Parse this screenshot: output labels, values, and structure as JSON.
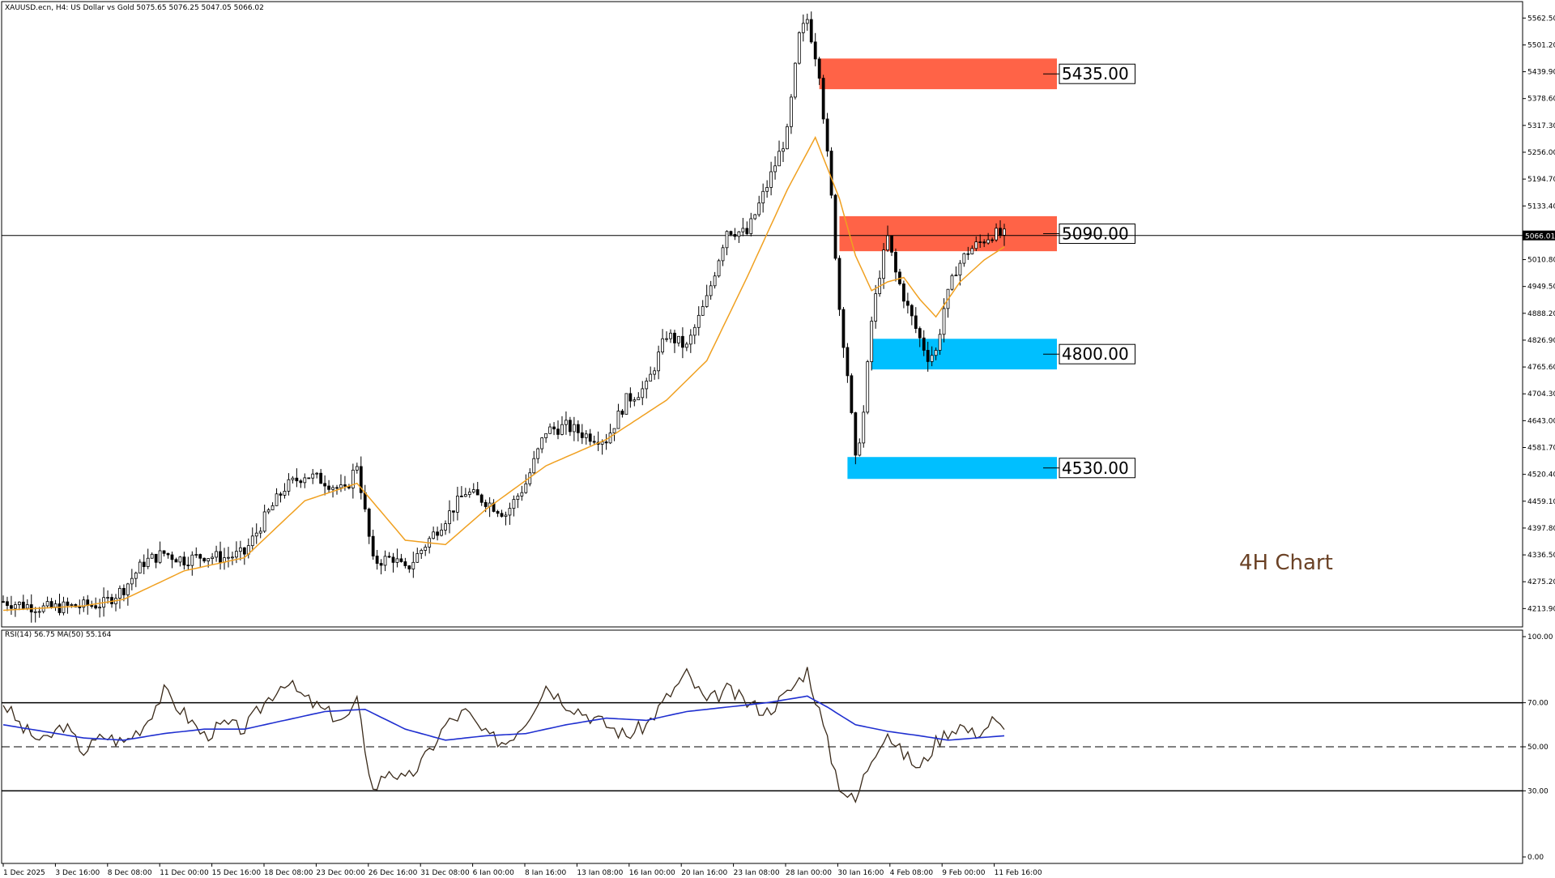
{
  "header": {
    "main_info": "XAUUSD.ecn, H4:  US Dollar vs Gold  5075.65 5076.25 5047.05 5066.02",
    "rsi_info": "RSI(14) 56.75 MA(50) 55.164"
  },
  "annotation": {
    "text": "4H Chart",
    "color": "#6b4226"
  },
  "colors": {
    "resistance": "#ff6347",
    "support": "#00bfff",
    "ma": "#f0a020",
    "rsi": "#3a2a1a",
    "rsi_ma": "#1f2fd0",
    "candle": "#000000"
  },
  "chart_data": [
    {
      "type": "candlestick",
      "symbol": "XAUUSD.ecn",
      "timeframe": "H4",
      "title": "XAUUSD.ecn, H4:  US Dollar vs Gold",
      "ohlc_last": {
        "open": 5075.65,
        "high": 5076.25,
        "low": 5047.05,
        "close": 5066.02
      },
      "current_price": "5066.01",
      "ylim": [
        4172.0,
        5600.0
      ],
      "y_ticks": [
        "5562.50",
        "5501.20",
        "5439.90",
        "5378.60",
        "5317.30",
        "5256.00",
        "5194.70",
        "5133.40",
        "5010.80",
        "4949.50",
        "4888.20",
        "4826.90",
        "4765.60",
        "4704.30",
        "4643.00",
        "4581.70",
        "4520.40",
        "4459.10",
        "4397.80",
        "4336.50",
        "4275.20",
        "4213.90"
      ],
      "x_ticks": [
        "1 Dec 2025",
        "3 Dec 16:00",
        "8 Dec 08:00",
        "11 Dec 00:00",
        "15 Dec 16:00",
        "18 Dec 08:00",
        "23 Dec 00:00",
        "26 Dec 16:00",
        "31 Dec 08:00",
        "6 Jan 00:00",
        "8 Jan 16:00",
        "13 Jan 08:00",
        "16 Jan 00:00",
        "20 Jan 16:00",
        "23 Jan 08:00",
        "28 Jan 00:00",
        "30 Jan 16:00",
        "4 Feb 08:00",
        "9 Feb 00:00",
        "11 Feb 16:00"
      ],
      "price_path": [
        {
          "x": 0,
          "y": 4230
        },
        {
          "x": 10,
          "y": 4215
        },
        {
          "x": 20,
          "y": 4220
        },
        {
          "x": 25,
          "y": 4225
        },
        {
          "x": 30,
          "y": 4260
        },
        {
          "x": 35,
          "y": 4320
        },
        {
          "x": 40,
          "y": 4340
        },
        {
          "x": 45,
          "y": 4325
        },
        {
          "x": 50,
          "y": 4335
        },
        {
          "x": 55,
          "y": 4330
        },
        {
          "x": 60,
          "y": 4340
        },
        {
          "x": 65,
          "y": 4420
        },
        {
          "x": 70,
          "y": 4490
        },
        {
          "x": 75,
          "y": 4520
        },
        {
          "x": 80,
          "y": 4505
        },
        {
          "x": 85,
          "y": 4480
        },
        {
          "x": 88,
          "y": 4545
        },
        {
          "x": 92,
          "y": 4320
        },
        {
          "x": 97,
          "y": 4330
        },
        {
          "x": 100,
          "y": 4300
        },
        {
          "x": 105,
          "y": 4360
        },
        {
          "x": 110,
          "y": 4420
        },
        {
          "x": 115,
          "y": 4480
        },
        {
          "x": 120,
          "y": 4460
        },
        {
          "x": 125,
          "y": 4430
        },
        {
          "x": 130,
          "y": 4500
        },
        {
          "x": 135,
          "y": 4620
        },
        {
          "x": 140,
          "y": 4630
        },
        {
          "x": 145,
          "y": 4610
        },
        {
          "x": 150,
          "y": 4600
        },
        {
          "x": 155,
          "y": 4690
        },
        {
          "x": 160,
          "y": 4720
        },
        {
          "x": 165,
          "y": 4840
        },
        {
          "x": 170,
          "y": 4810
        },
        {
          "x": 175,
          "y": 4920
        },
        {
          "x": 180,
          "y": 5080
        },
        {
          "x": 185,
          "y": 5070
        },
        {
          "x": 190,
          "y": 5180
        },
        {
          "x": 195,
          "y": 5300
        },
        {
          "x": 198,
          "y": 5520
        },
        {
          "x": 200,
          "y": 5560
        },
        {
          "x": 203,
          "y": 5440
        },
        {
          "x": 206,
          "y": 5150
        },
        {
          "x": 208,
          "y": 4900
        },
        {
          "x": 210,
          "y": 4750
        },
        {
          "x": 212,
          "y": 4550
        },
        {
          "x": 214,
          "y": 4660
        },
        {
          "x": 216,
          "y": 4870
        },
        {
          "x": 218,
          "y": 4980
        },
        {
          "x": 220,
          "y": 5060
        },
        {
          "x": 222,
          "y": 4980
        },
        {
          "x": 225,
          "y": 4900
        },
        {
          "x": 228,
          "y": 4830
        },
        {
          "x": 230,
          "y": 4790
        },
        {
          "x": 232,
          "y": 4800
        },
        {
          "x": 234,
          "y": 4900
        },
        {
          "x": 237,
          "y": 4990
        },
        {
          "x": 240,
          "y": 5030
        },
        {
          "x": 243,
          "y": 5050
        },
        {
          "x": 246,
          "y": 5070
        },
        {
          "x": 249,
          "y": 5066
        }
      ],
      "moving_average": {
        "color": "#f0a020",
        "values": [
          {
            "x": 0,
            "y": 4210
          },
          {
            "x": 20,
            "y": 4220
          },
          {
            "x": 30,
            "y": 4235
          },
          {
            "x": 45,
            "y": 4300
          },
          {
            "x": 60,
            "y": 4330
          },
          {
            "x": 75,
            "y": 4460
          },
          {
            "x": 88,
            "y": 4500
          },
          {
            "x": 100,
            "y": 4370
          },
          {
            "x": 110,
            "y": 4360
          },
          {
            "x": 120,
            "y": 4440
          },
          {
            "x": 135,
            "y": 4540
          },
          {
            "x": 150,
            "y": 4600
          },
          {
            "x": 165,
            "y": 4690
          },
          {
            "x": 175,
            "y": 4780
          },
          {
            "x": 185,
            "y": 4970
          },
          {
            "x": 195,
            "y": 5170
          },
          {
            "x": 202,
            "y": 5290
          },
          {
            "x": 208,
            "y": 5150
          },
          {
            "x": 212,
            "y": 5020
          },
          {
            "x": 216,
            "y": 4940
          },
          {
            "x": 220,
            "y": 4960
          },
          {
            "x": 224,
            "y": 4970
          },
          {
            "x": 228,
            "y": 4920
          },
          {
            "x": 232,
            "y": 4880
          },
          {
            "x": 238,
            "y": 4960
          },
          {
            "x": 244,
            "y": 5010
          },
          {
            "x": 249,
            "y": 5040
          }
        ]
      },
      "levels": [
        {
          "label": "5435.00",
          "kind": "resistance",
          "from": 5400,
          "to": 5470,
          "x_start": 203
        },
        {
          "label": "5090.00",
          "kind": "resistance",
          "from": 5030,
          "to": 5110,
          "x_start": 208
        },
        {
          "label": "4800.00",
          "kind": "support",
          "from": 4760,
          "to": 4830,
          "x_start": 216
        },
        {
          "label": "4530.00",
          "kind": "support",
          "from": 4510,
          "to": 4560,
          "x_start": 210
        }
      ]
    },
    {
      "type": "line",
      "title": "RSI(14) 56.75 MA(50) 55.164",
      "ylim": [
        0,
        100
      ],
      "y_ticks": [
        "100.00",
        "70.00",
        "50.00",
        "30.00",
        "0.00"
      ],
      "levels": [
        70,
        50,
        30
      ],
      "series": [
        {
          "name": "RSI(14)",
          "values": [
            {
              "x": 0,
              "y": 70
            },
            {
              "x": 5,
              "y": 58
            },
            {
              "x": 10,
              "y": 52
            },
            {
              "x": 15,
              "y": 60
            },
            {
              "x": 20,
              "y": 48
            },
            {
              "x": 25,
              "y": 55
            },
            {
              "x": 30,
              "y": 52
            },
            {
              "x": 35,
              "y": 60
            },
            {
              "x": 40,
              "y": 75
            },
            {
              "x": 45,
              "y": 65
            },
            {
              "x": 50,
              "y": 55
            },
            {
              "x": 55,
              "y": 60
            },
            {
              "x": 60,
              "y": 58
            },
            {
              "x": 65,
              "y": 70
            },
            {
              "x": 70,
              "y": 80
            },
            {
              "x": 75,
              "y": 72
            },
            {
              "x": 80,
              "y": 66
            },
            {
              "x": 85,
              "y": 62
            },
            {
              "x": 88,
              "y": 70
            },
            {
              "x": 92,
              "y": 30
            },
            {
              "x": 96,
              "y": 40
            },
            {
              "x": 100,
              "y": 34
            },
            {
              "x": 105,
              "y": 45
            },
            {
              "x": 110,
              "y": 60
            },
            {
              "x": 115,
              "y": 66
            },
            {
              "x": 120,
              "y": 55
            },
            {
              "x": 125,
              "y": 52
            },
            {
              "x": 130,
              "y": 62
            },
            {
              "x": 135,
              "y": 78
            },
            {
              "x": 140,
              "y": 70
            },
            {
              "x": 145,
              "y": 65
            },
            {
              "x": 150,
              "y": 60
            },
            {
              "x": 155,
              "y": 55
            },
            {
              "x": 160,
              "y": 60
            },
            {
              "x": 165,
              "y": 72
            },
            {
              "x": 170,
              "y": 83
            },
            {
              "x": 175,
              "y": 70
            },
            {
              "x": 180,
              "y": 76
            },
            {
              "x": 185,
              "y": 70
            },
            {
              "x": 190,
              "y": 66
            },
            {
              "x": 195,
              "y": 74
            },
            {
              "x": 200,
              "y": 85
            },
            {
              "x": 203,
              "y": 66
            },
            {
              "x": 206,
              "y": 45
            },
            {
              "x": 208,
              "y": 33
            },
            {
              "x": 210,
              "y": 28
            },
            {
              "x": 212,
              "y": 25
            },
            {
              "x": 214,
              "y": 36
            },
            {
              "x": 216,
              "y": 45
            },
            {
              "x": 218,
              "y": 52
            },
            {
              "x": 220,
              "y": 57
            },
            {
              "x": 222,
              "y": 50
            },
            {
              "x": 225,
              "y": 45
            },
            {
              "x": 228,
              "y": 40
            },
            {
              "x": 230,
              "y": 46
            },
            {
              "x": 232,
              "y": 52
            },
            {
              "x": 235,
              "y": 57
            },
            {
              "x": 238,
              "y": 60
            },
            {
              "x": 241,
              "y": 56
            },
            {
              "x": 244,
              "y": 58
            },
            {
              "x": 246,
              "y": 62
            },
            {
              "x": 249,
              "y": 57
            }
          ]
        },
        {
          "name": "MA(50)",
          "values": [
            {
              "x": 0,
              "y": 60
            },
            {
              "x": 10,
              "y": 57
            },
            {
              "x": 20,
              "y": 54
            },
            {
              "x": 30,
              "y": 53
            },
            {
              "x": 40,
              "y": 56
            },
            {
              "x": 50,
              "y": 58
            },
            {
              "x": 60,
              "y": 58
            },
            {
              "x": 70,
              "y": 62
            },
            {
              "x": 80,
              "y": 66
            },
            {
              "x": 90,
              "y": 67
            },
            {
              "x": 100,
              "y": 58
            },
            {
              "x": 110,
              "y": 53
            },
            {
              "x": 120,
              "y": 55
            },
            {
              "x": 130,
              "y": 56
            },
            {
              "x": 140,
              "y": 60
            },
            {
              "x": 150,
              "y": 63
            },
            {
              "x": 160,
              "y": 62
            },
            {
              "x": 170,
              "y": 66
            },
            {
              "x": 180,
              "y": 68
            },
            {
              "x": 190,
              "y": 70
            },
            {
              "x": 200,
              "y": 73
            },
            {
              "x": 205,
              "y": 68
            },
            {
              "x": 212,
              "y": 60
            },
            {
              "x": 220,
              "y": 57
            },
            {
              "x": 228,
              "y": 55
            },
            {
              "x": 235,
              "y": 53
            },
            {
              "x": 242,
              "y": 54
            },
            {
              "x": 249,
              "y": 55
            }
          ]
        }
      ]
    }
  ]
}
